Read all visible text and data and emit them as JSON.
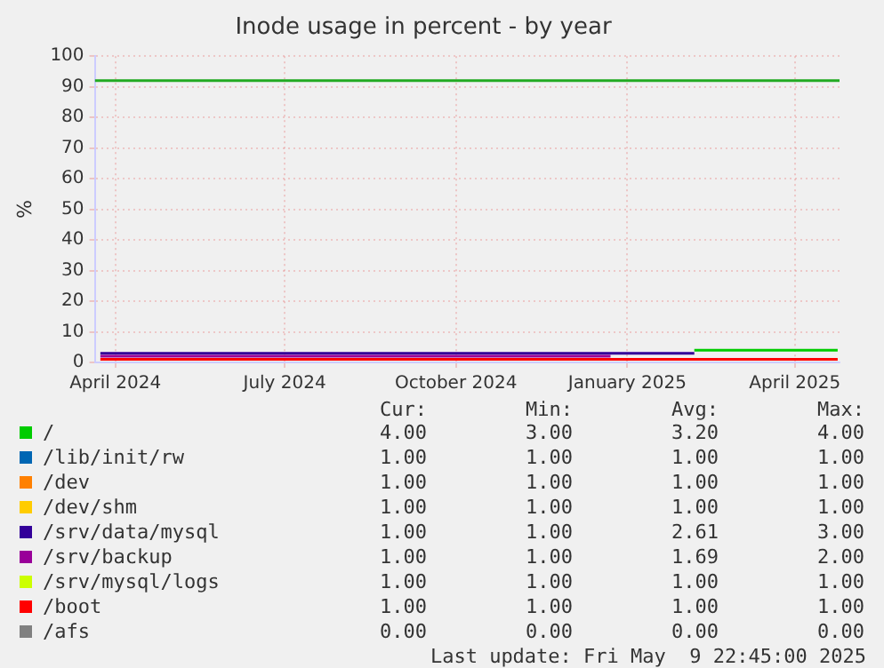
{
  "chart_data": {
    "type": "step",
    "title": "Inode usage in percent - by year",
    "ylabel": "%",
    "xlim": [
      "2024-03-21",
      "2025-04-25"
    ],
    "xticks": [
      {
        "value": "2024-04-01",
        "label": "April 2024"
      },
      {
        "value": "2024-07-01",
        "label": "July 2024"
      },
      {
        "value": "2024-10-01",
        "label": "October 2024"
      },
      {
        "value": "2025-01-01",
        "label": "January 2025"
      },
      {
        "value": "2025-04-01",
        "label": "April 2025"
      }
    ],
    "ylim": [
      0,
      100
    ],
    "yticks": [
      0,
      10,
      20,
      30,
      40,
      50,
      60,
      70,
      80,
      90,
      100
    ],
    "grid": true,
    "legend": "bottom",
    "ref_lines": [
      {
        "axis": "y",
        "value": 92,
        "color": "#22aa22"
      }
    ],
    "series": [
      {
        "name": "/",
        "color": "#00cc00",
        "x": [
          "2025-02-06",
          "2025-04-24"
        ],
        "values": [
          4,
          4
        ]
      },
      {
        "name": "/lib/init/rw",
        "color": "#0066b3"
      },
      {
        "name": "/dev",
        "color": "#ff8000"
      },
      {
        "name": "/dev/shm",
        "color": "#ffcc00"
      },
      {
        "name": "/srv/data/mysql",
        "color": "#330099",
        "x": [
          "2024-03-24",
          "2025-02-06"
        ],
        "values": [
          3,
          3
        ]
      },
      {
        "name": "/srv/backup",
        "color": "#990099",
        "x": [
          "2024-03-24",
          "2024-12-23"
        ],
        "values": [
          2,
          2
        ]
      },
      {
        "name": "/srv/mysql/logs",
        "color": "#ccff00"
      },
      {
        "name": "/boot",
        "color": "#ff0000",
        "x": [
          "2024-03-24",
          "2025-04-24"
        ],
        "values": [
          1,
          1
        ]
      },
      {
        "name": "/afs",
        "color": "#808080"
      }
    ],
    "annotations": [
      "Cur:",
      "Min:",
      "Avg:",
      "Max:",
      "4.00",
      "3.00",
      "3.20",
      "4.00",
      "1.00",
      "1.00",
      "1.00",
      "1.00",
      "1.00",
      "1.00",
      "1.00",
      "1.00",
      "1.00",
      "1.00",
      "1.00",
      "1.00",
      "1.00",
      "1.00",
      "2.61",
      "3.00",
      "1.00",
      "1.00",
      "1.69",
      "2.00",
      "1.00",
      "1.00",
      "1.00",
      "1.00",
      "1.00",
      "1.00",
      "1.00",
      "1.00",
      "0.00",
      "0.00",
      "0.00",
      "0.00",
      "Last update: Fri May  9 22:45:00 2025"
    ]
  }
}
